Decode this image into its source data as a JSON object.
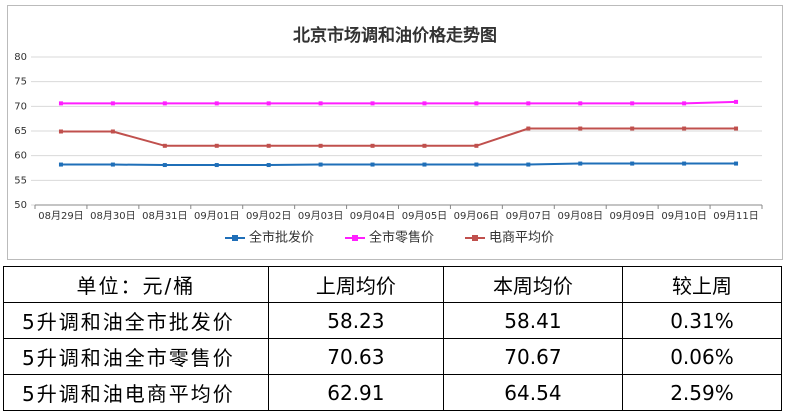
{
  "chart_data": {
    "type": "line",
    "title": "北京市场调和油价格走势图",
    "categories": [
      "08月29日",
      "08月30日",
      "08月31日",
      "09月01日",
      "09月02日",
      "09月03日",
      "09月04日",
      "09月05日",
      "09月06日",
      "09月07日",
      "09月08日",
      "09月09日",
      "09月10日",
      "09月11日"
    ],
    "series": [
      {
        "name": "全市批发价",
        "color": "#1f6fb8",
        "values": [
          58.2,
          58.2,
          58.1,
          58.1,
          58.1,
          58.2,
          58.2,
          58.2,
          58.2,
          58.2,
          58.4,
          58.4,
          58.4,
          58.4
        ]
      },
      {
        "name": "全市零售价",
        "color": "#ff1eff",
        "values": [
          70.6,
          70.6,
          70.6,
          70.6,
          70.6,
          70.6,
          70.6,
          70.6,
          70.6,
          70.6,
          70.6,
          70.6,
          70.6,
          70.9
        ]
      },
      {
        "name": "电商平均价",
        "color": "#c0504d",
        "values": [
          64.9,
          64.9,
          62.0,
          62.0,
          62.0,
          62.0,
          62.0,
          62.0,
          62.0,
          65.5,
          65.5,
          65.5,
          65.5,
          65.5
        ]
      }
    ],
    "ylim": [
      50,
      80
    ],
    "yticks": [
      50,
      55,
      60,
      65,
      70,
      75,
      80
    ],
    "grid": true,
    "legend": "bottom"
  },
  "table": {
    "header": [
      "单位：元/桶",
      "上周均价",
      "本周均价",
      "较上周"
    ],
    "rows": [
      [
        "5升调和油全市批发价",
        "58.23",
        "58.41",
        "0.31%"
      ],
      [
        "5升调和油全市零售价",
        "70.63",
        "70.67",
        "0.06%"
      ],
      [
        "5升调和油电商平均价",
        "62.91",
        "64.54",
        "2.59%"
      ]
    ]
  }
}
